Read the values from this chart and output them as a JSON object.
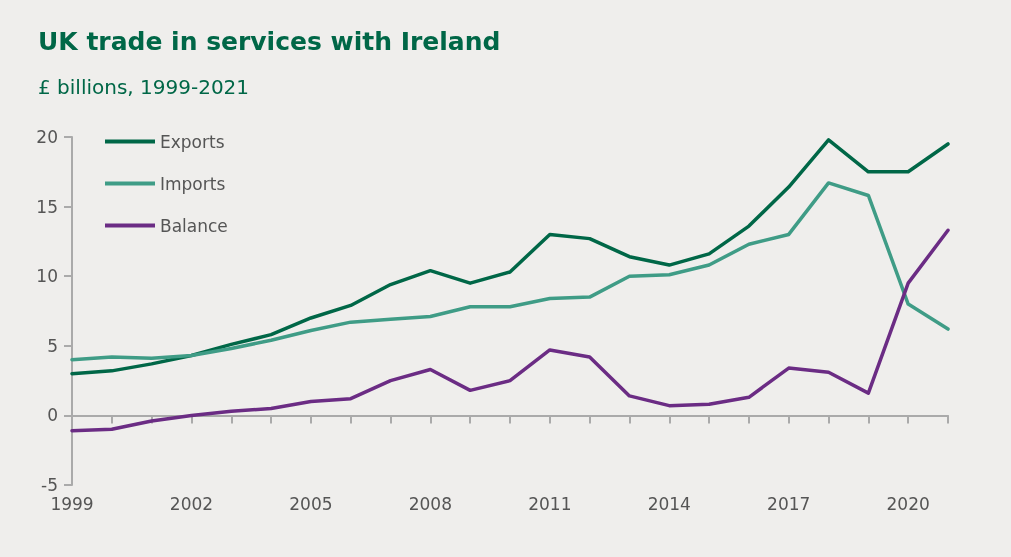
{
  "chart_data": {
    "type": "line",
    "title": "UK trade in services with Ireland",
    "subtitle": "£ billions, 1999-2021",
    "x": [
      1999,
      2000,
      2001,
      2002,
      2003,
      2004,
      2005,
      2006,
      2007,
      2008,
      2009,
      2010,
      2011,
      2012,
      2013,
      2014,
      2015,
      2016,
      2017,
      2018,
      2019,
      2020,
      2021
    ],
    "series": [
      {
        "name": "Exports",
        "color": "#006747",
        "values": [
          3.0,
          3.2,
          3.7,
          4.3,
          5.1,
          5.8,
          7.0,
          7.9,
          9.4,
          10.4,
          9.5,
          10.3,
          13.0,
          12.7,
          11.4,
          10.8,
          11.6,
          13.6,
          16.4,
          19.8,
          17.5,
          17.5,
          19.5
        ]
      },
      {
        "name": "Imports",
        "color": "#3f9c86",
        "values": [
          4.0,
          4.2,
          4.1,
          4.3,
          4.8,
          5.4,
          6.1,
          6.7,
          6.9,
          7.1,
          7.8,
          7.8,
          8.4,
          8.5,
          10.0,
          10.1,
          10.8,
          12.3,
          13.0,
          16.7,
          15.8,
          8.0,
          6.2
        ]
      },
      {
        "name": "Balance",
        "color": "#6b2c84",
        "values": [
          -1.1,
          -1.0,
          -0.4,
          0.0,
          0.3,
          0.5,
          1.0,
          1.2,
          2.5,
          3.3,
          1.8,
          2.5,
          4.7,
          4.2,
          1.4,
          0.7,
          0.8,
          1.3,
          3.4,
          3.1,
          1.6,
          9.5,
          13.3
        ]
      }
    ],
    "xlim": [
      1999,
      2021
    ],
    "xticks": [
      1999,
      {
        "value": 2000,
        "label": null
      },
      {
        "value": 2001,
        "label": null
      },
      2002,
      {
        "value": 2003,
        "label": null
      },
      {
        "value": 2004,
        "label": null
      },
      2005,
      {
        "value": 2006,
        "label": null
      },
      {
        "value": 2007,
        "label": null
      },
      2008,
      {
        "value": 2009,
        "label": null
      },
      {
        "value": 2010,
        "label": null
      },
      2011,
      {
        "value": 2012,
        "label": null
      },
      {
        "value": 2013,
        "label": null
      },
      2014,
      {
        "value": 2015,
        "label": null
      },
      {
        "value": 2016,
        "label": null
      },
      2017,
      {
        "value": 2018,
        "label": null
      },
      {
        "value": 2019,
        "label": null
      },
      2020,
      {
        "value": 2021,
        "label": null
      }
    ],
    "ylim": [
      -5,
      20
    ],
    "yticks": [
      -5,
      0,
      5,
      10,
      15,
      20
    ],
    "legend": "top left",
    "marker": "none",
    "line_style": "solid"
  }
}
